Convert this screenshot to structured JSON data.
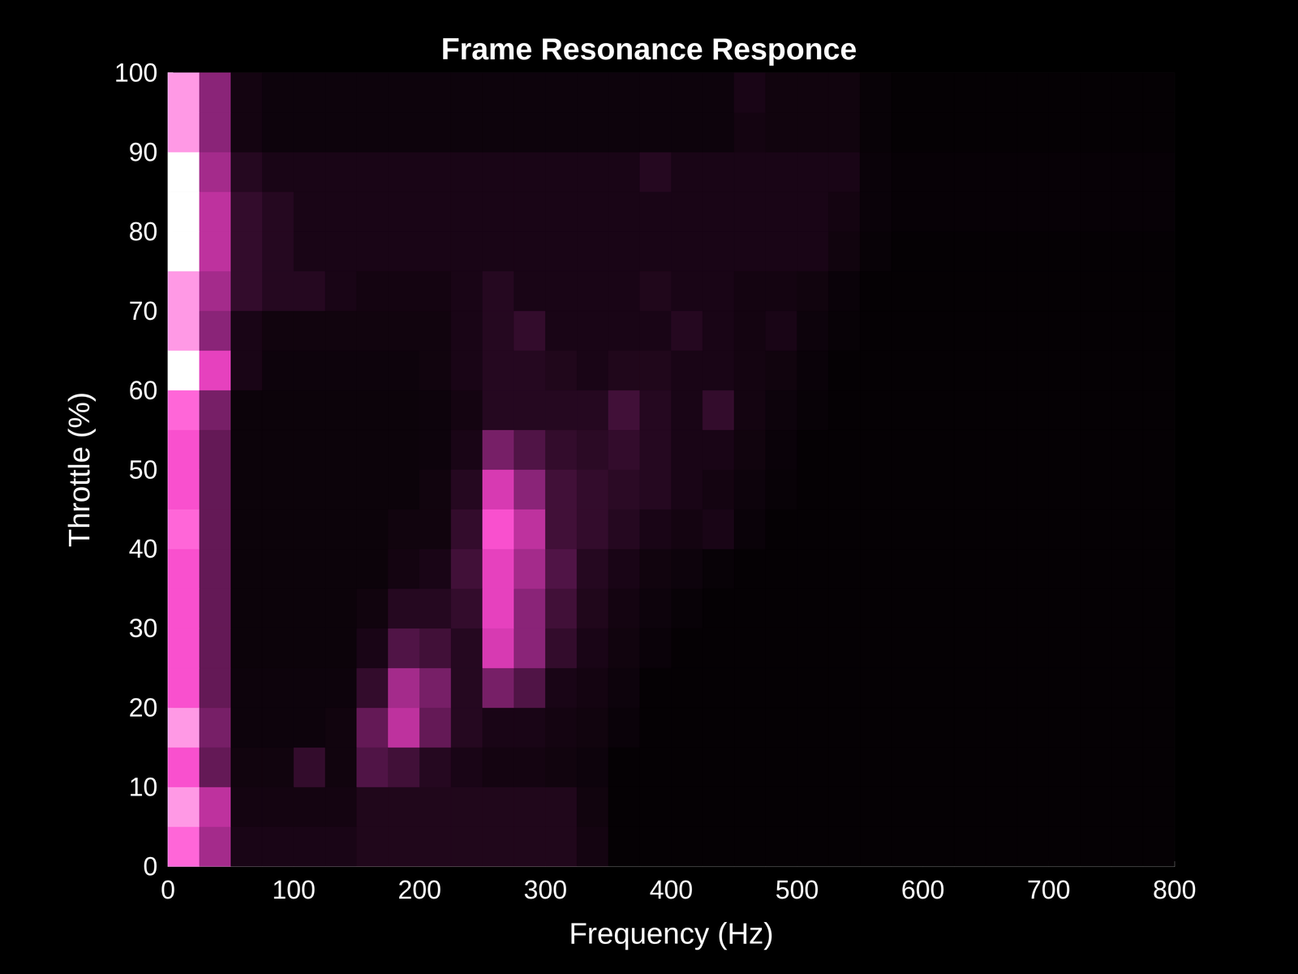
{
  "chart_data": {
    "type": "heatmap",
    "title": "Frame Resonance Responce",
    "x_label": "Frequency (Hz)",
    "y_label": "Throttle (%)",
    "xlim": [
      0,
      800
    ],
    "xticks": [
      0,
      100,
      200,
      300,
      400,
      500,
      600,
      700,
      800
    ],
    "ylim": [
      0,
      100
    ],
    "yticks": [
      0,
      10,
      20,
      30,
      40,
      50,
      60,
      70,
      80,
      90,
      100
    ],
    "grid": false,
    "x_edges": [
      0,
      25,
      50,
      75,
      100,
      125,
      150,
      175,
      200,
      225,
      250,
      275,
      300,
      325,
      350,
      375,
      400,
      425,
      450,
      475,
      500,
      525,
      550,
      575,
      600,
      625,
      650,
      675,
      700,
      725,
      750,
      775,
      800
    ],
    "y_edges": [
      0,
      5,
      10,
      15,
      20,
      25,
      30,
      35,
      40,
      45,
      50,
      55,
      60,
      65,
      70,
      75,
      80,
      85,
      90,
      95,
      100
    ],
    "zlim": [
      0,
      1
    ],
    "cells": [
      [
        0.85,
        0.55,
        0.15,
        0.15,
        0.15,
        0.15,
        0.18,
        0.18,
        0.18,
        0.18,
        0.18,
        0.18,
        0.18,
        0.12,
        0.03,
        0.03,
        0.03,
        0.03,
        0.03,
        0.03,
        0.03,
        0.03,
        0.03,
        0.03,
        0.03,
        0.03,
        0.03,
        0.03,
        0.03,
        0.03,
        0.03,
        0.03
      ],
      [
        0.9,
        0.6,
        0.12,
        0.12,
        0.12,
        0.12,
        0.18,
        0.18,
        0.18,
        0.18,
        0.18,
        0.18,
        0.18,
        0.1,
        0.03,
        0.03,
        0.03,
        0.03,
        0.03,
        0.03,
        0.03,
        0.03,
        0.03,
        0.03,
        0.03,
        0.03,
        0.03,
        0.03,
        0.03,
        0.03,
        0.03,
        0.03
      ],
      [
        0.8,
        0.4,
        0.1,
        0.1,
        0.25,
        0.1,
        0.35,
        0.3,
        0.2,
        0.15,
        0.12,
        0.12,
        0.1,
        0.08,
        0.03,
        0.03,
        0.03,
        0.03,
        0.03,
        0.03,
        0.03,
        0.03,
        0.03,
        0.03,
        0.03,
        0.03,
        0.03,
        0.03,
        0.03,
        0.03,
        0.03,
        0.03
      ],
      [
        0.9,
        0.45,
        0.08,
        0.08,
        0.08,
        0.1,
        0.4,
        0.6,
        0.4,
        0.2,
        0.15,
        0.15,
        0.12,
        0.1,
        0.06,
        0.03,
        0.03,
        0.03,
        0.03,
        0.03,
        0.03,
        0.03,
        0.03,
        0.03,
        0.03,
        0.03,
        0.03,
        0.03,
        0.03,
        0.03,
        0.03,
        0.03
      ],
      [
        0.8,
        0.4,
        0.08,
        0.08,
        0.08,
        0.08,
        0.25,
        0.55,
        0.45,
        0.2,
        0.45,
        0.35,
        0.15,
        0.12,
        0.08,
        0.03,
        0.03,
        0.03,
        0.03,
        0.03,
        0.03,
        0.03,
        0.03,
        0.03,
        0.03,
        0.03,
        0.03,
        0.03,
        0.03,
        0.03,
        0.03,
        0.03
      ],
      [
        0.8,
        0.4,
        0.07,
        0.07,
        0.07,
        0.07,
        0.15,
        0.35,
        0.3,
        0.2,
        0.65,
        0.5,
        0.25,
        0.15,
        0.1,
        0.06,
        0.03,
        0.03,
        0.03,
        0.03,
        0.03,
        0.03,
        0.03,
        0.03,
        0.03,
        0.03,
        0.03,
        0.03,
        0.03,
        0.03,
        0.03,
        0.03
      ],
      [
        0.8,
        0.4,
        0.07,
        0.07,
        0.07,
        0.07,
        0.1,
        0.2,
        0.2,
        0.25,
        0.7,
        0.5,
        0.3,
        0.18,
        0.12,
        0.08,
        0.05,
        0.03,
        0.03,
        0.03,
        0.03,
        0.03,
        0.03,
        0.03,
        0.03,
        0.03,
        0.03,
        0.03,
        0.03,
        0.03,
        0.03,
        0.03
      ],
      [
        0.8,
        0.4,
        0.07,
        0.07,
        0.07,
        0.07,
        0.07,
        0.12,
        0.15,
        0.3,
        0.7,
        0.55,
        0.35,
        0.2,
        0.15,
        0.1,
        0.08,
        0.05,
        0.03,
        0.03,
        0.03,
        0.03,
        0.03,
        0.03,
        0.03,
        0.03,
        0.03,
        0.03,
        0.03,
        0.03,
        0.03,
        0.03
      ],
      [
        0.85,
        0.4,
        0.07,
        0.07,
        0.07,
        0.07,
        0.07,
        0.1,
        0.1,
        0.25,
        0.8,
        0.6,
        0.3,
        0.25,
        0.2,
        0.15,
        0.12,
        0.15,
        0.06,
        0.03,
        0.03,
        0.03,
        0.03,
        0.03,
        0.03,
        0.03,
        0.03,
        0.03,
        0.03,
        0.03,
        0.03,
        0.03
      ],
      [
        0.8,
        0.4,
        0.07,
        0.07,
        0.07,
        0.07,
        0.07,
        0.07,
        0.1,
        0.2,
        0.65,
        0.5,
        0.3,
        0.25,
        0.22,
        0.2,
        0.15,
        0.12,
        0.08,
        0.05,
        0.03,
        0.03,
        0.03,
        0.03,
        0.03,
        0.03,
        0.03,
        0.03,
        0.03,
        0.03,
        0.03,
        0.03
      ],
      [
        0.8,
        0.4,
        0.07,
        0.07,
        0.07,
        0.07,
        0.07,
        0.07,
        0.08,
        0.15,
        0.45,
        0.35,
        0.25,
        0.22,
        0.25,
        0.2,
        0.15,
        0.15,
        0.1,
        0.06,
        0.03,
        0.03,
        0.03,
        0.03,
        0.03,
        0.03,
        0.03,
        0.03,
        0.03,
        0.03,
        0.03,
        0.03
      ],
      [
        0.85,
        0.45,
        0.07,
        0.07,
        0.07,
        0.07,
        0.07,
        0.07,
        0.08,
        0.12,
        0.2,
        0.2,
        0.2,
        0.2,
        0.3,
        0.2,
        0.15,
        0.25,
        0.12,
        0.08,
        0.05,
        0.03,
        0.03,
        0.03,
        0.03,
        0.03,
        0.03,
        0.03,
        0.03,
        0.03,
        0.03,
        0.03
      ],
      [
        1.0,
        0.7,
        0.15,
        0.08,
        0.08,
        0.08,
        0.08,
        0.08,
        0.1,
        0.15,
        0.2,
        0.2,
        0.18,
        0.15,
        0.18,
        0.18,
        0.15,
        0.15,
        0.12,
        0.1,
        0.06,
        0.03,
        0.03,
        0.03,
        0.03,
        0.03,
        0.03,
        0.03,
        0.03,
        0.03,
        0.03,
        0.03
      ],
      [
        0.9,
        0.5,
        0.15,
        0.1,
        0.1,
        0.1,
        0.1,
        0.1,
        0.1,
        0.15,
        0.2,
        0.25,
        0.15,
        0.15,
        0.15,
        0.15,
        0.2,
        0.15,
        0.12,
        0.15,
        0.08,
        0.05,
        0.03,
        0.03,
        0.03,
        0.03,
        0.03,
        0.03,
        0.03,
        0.03,
        0.03,
        0.03
      ],
      [
        0.9,
        0.55,
        0.25,
        0.2,
        0.2,
        0.15,
        0.12,
        0.12,
        0.12,
        0.15,
        0.2,
        0.15,
        0.15,
        0.15,
        0.15,
        0.18,
        0.15,
        0.15,
        0.12,
        0.12,
        0.1,
        0.06,
        0.03,
        0.03,
        0.03,
        0.03,
        0.03,
        0.03,
        0.03,
        0.03,
        0.03,
        0.03
      ],
      [
        1.0,
        0.6,
        0.25,
        0.2,
        0.15,
        0.15,
        0.15,
        0.15,
        0.15,
        0.15,
        0.15,
        0.15,
        0.15,
        0.15,
        0.15,
        0.15,
        0.15,
        0.15,
        0.15,
        0.15,
        0.15,
        0.1,
        0.05,
        0.03,
        0.03,
        0.03,
        0.03,
        0.03,
        0.03,
        0.03,
        0.03,
        0.03
      ],
      [
        1.0,
        0.6,
        0.25,
        0.2,
        0.15,
        0.15,
        0.15,
        0.15,
        0.15,
        0.15,
        0.15,
        0.15,
        0.15,
        0.15,
        0.15,
        0.15,
        0.15,
        0.15,
        0.15,
        0.15,
        0.15,
        0.12,
        0.06,
        0.04,
        0.04,
        0.04,
        0.04,
        0.04,
        0.04,
        0.04,
        0.04,
        0.04
      ],
      [
        1.0,
        0.55,
        0.2,
        0.15,
        0.15,
        0.15,
        0.15,
        0.15,
        0.15,
        0.15,
        0.15,
        0.15,
        0.15,
        0.15,
        0.15,
        0.2,
        0.15,
        0.15,
        0.15,
        0.15,
        0.15,
        0.15,
        0.06,
        0.04,
        0.04,
        0.04,
        0.04,
        0.04,
        0.04,
        0.04,
        0.04,
        0.04
      ],
      [
        0.9,
        0.5,
        0.12,
        0.08,
        0.08,
        0.08,
        0.08,
        0.08,
        0.08,
        0.08,
        0.08,
        0.08,
        0.08,
        0.08,
        0.08,
        0.08,
        0.08,
        0.08,
        0.12,
        0.1,
        0.1,
        0.1,
        0.05,
        0.03,
        0.03,
        0.03,
        0.03,
        0.03,
        0.03,
        0.03,
        0.03,
        0.03
      ],
      [
        0.9,
        0.5,
        0.12,
        0.08,
        0.08,
        0.08,
        0.08,
        0.08,
        0.08,
        0.08,
        0.08,
        0.08,
        0.08,
        0.08,
        0.08,
        0.08,
        0.08,
        0.08,
        0.15,
        0.1,
        0.1,
        0.1,
        0.05,
        0.03,
        0.03,
        0.03,
        0.03,
        0.03,
        0.03,
        0.03,
        0.03,
        0.03
      ]
    ]
  }
}
